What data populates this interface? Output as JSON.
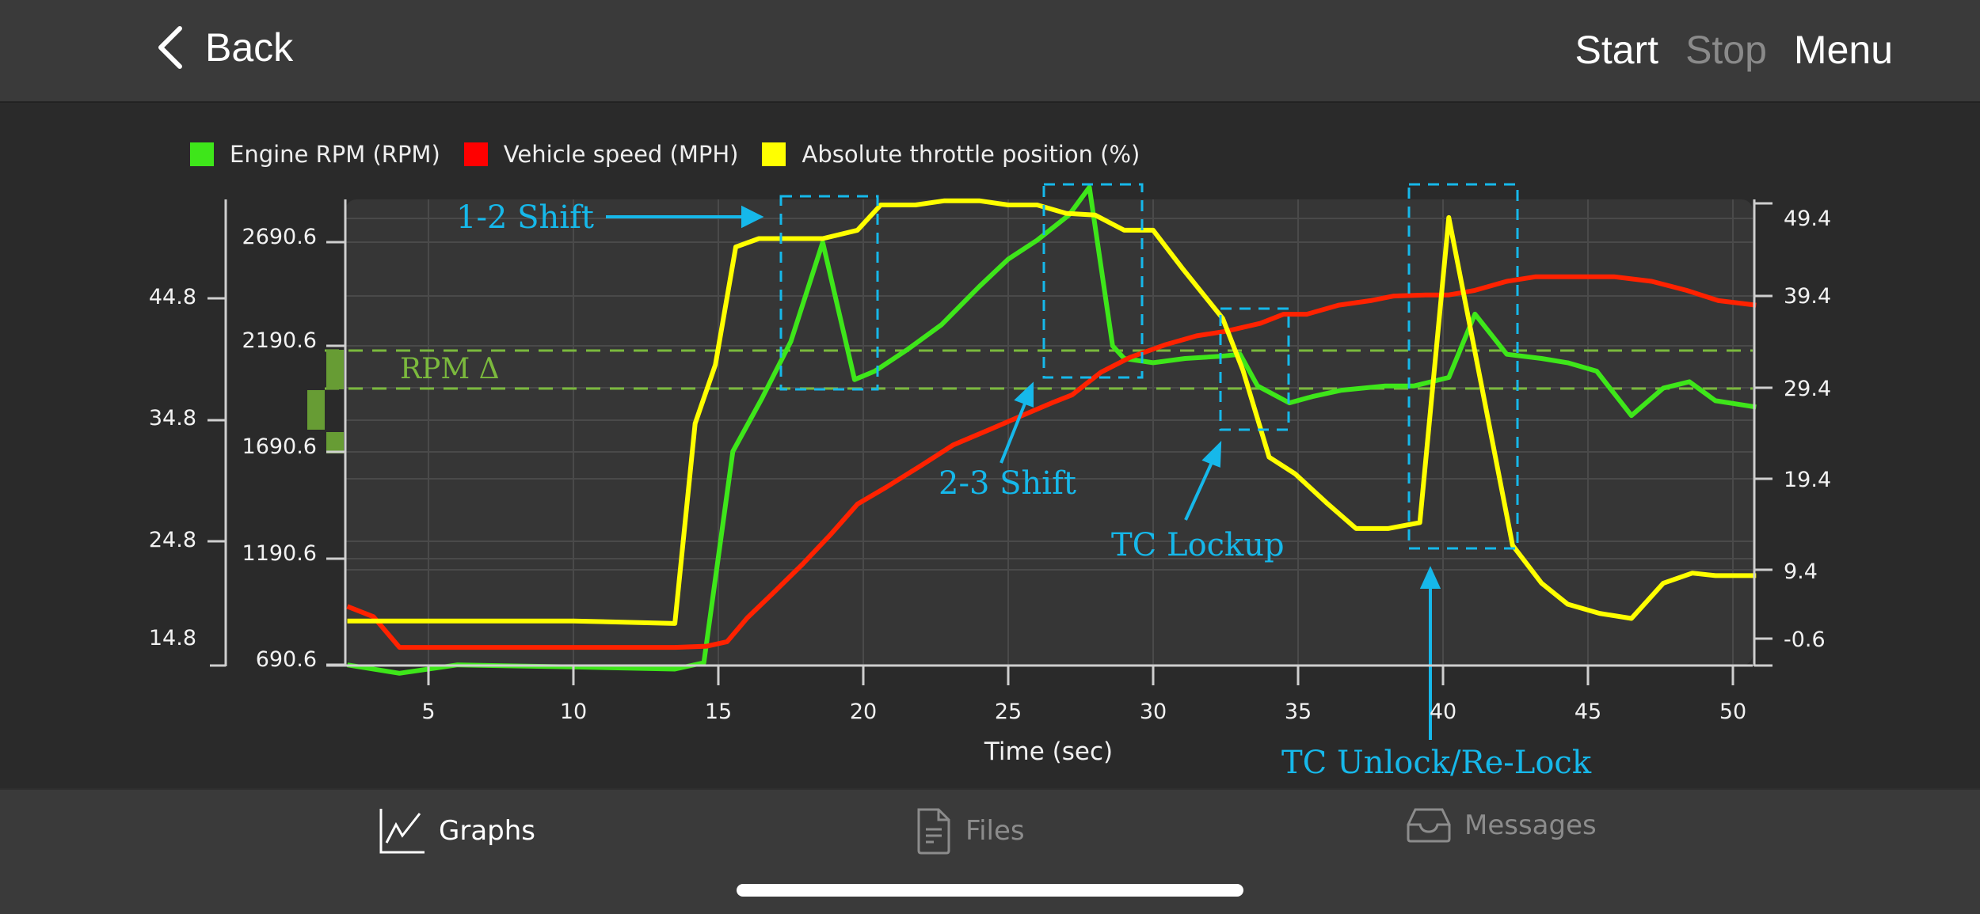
{
  "nav": {
    "back_label": "Back",
    "start_label": "Start",
    "stop_label": "Stop",
    "menu_label": "Menu"
  },
  "legend": [
    {
      "label": "Engine RPM (RPM)",
      "color": "#3ee61a"
    },
    {
      "label": "Vehicle speed (MPH)",
      "color": "#ff0000"
    },
    {
      "label": "Absolute throttle position (%)",
      "color": "#ffff00"
    }
  ],
  "annotations": {
    "shift12": "1-2 Shift",
    "shift23": "2-3 Shift",
    "tc_lockup": "TC Lockup",
    "tc_unlock": "TC Unlock/Re-Lock",
    "rpm_delta": "RPM Δ"
  },
  "tabs": [
    {
      "label": "Graphs",
      "icon": "line-chart-icon",
      "active": true
    },
    {
      "label": "Files",
      "icon": "document-icon",
      "active": false
    },
    {
      "label": "Messages",
      "icon": "inbox-tray-icon",
      "active": false
    }
  ],
  "chart_data": {
    "type": "line",
    "xlabel": "Time (sec)",
    "x_ticks": [
      5,
      10,
      15,
      20,
      25,
      30,
      35,
      40,
      45,
      50
    ],
    "xlim": [
      2.2,
      50.8
    ],
    "axes": {
      "speed_left_outer": {
        "ticks": [
          "44.8",
          "34.8",
          "24.8",
          "14.8"
        ]
      },
      "rpm_left_inner": {
        "ticks": [
          "2690.6",
          "2190.6",
          "1690.6",
          "1190.6",
          "690.6"
        ]
      },
      "throttle_right": {
        "ticks": [
          "49.4",
          "39.4",
          "29.4",
          "19.4",
          "9.4",
          "-0.6"
        ]
      }
    },
    "grid": true,
    "legend_position": "top",
    "series": [
      {
        "name": "Engine RPM (RPM)",
        "color": "#3ee61a",
        "axis": "rpm",
        "points": [
          [
            2.2,
            690
          ],
          [
            4,
            650
          ],
          [
            6,
            690
          ],
          [
            10,
            680
          ],
          [
            13.5,
            670
          ],
          [
            14.5,
            700
          ],
          [
            15.5,
            1700
          ],
          [
            16.5,
            1950
          ],
          [
            17.5,
            2220
          ],
          [
            18.6,
            2690
          ],
          [
            19.7,
            2040
          ],
          [
            20.4,
            2080
          ],
          [
            21.5,
            2180
          ],
          [
            22.7,
            2300
          ],
          [
            24,
            2480
          ],
          [
            25,
            2610
          ],
          [
            26,
            2700
          ],
          [
            27.1,
            2820
          ],
          [
            27.8,
            2950
          ],
          [
            28.6,
            2200
          ],
          [
            29,
            2140
          ],
          [
            30,
            2120
          ],
          [
            31.1,
            2140
          ],
          [
            32.3,
            2150
          ],
          [
            33,
            2160
          ],
          [
            33.6,
            2010
          ],
          [
            34.7,
            1930
          ],
          [
            35.5,
            1960
          ],
          [
            36.5,
            1990
          ],
          [
            38,
            2010
          ],
          [
            39,
            2010
          ],
          [
            40.2,
            2050
          ],
          [
            41.1,
            2350
          ],
          [
            42.2,
            2160
          ],
          [
            43.4,
            2140
          ],
          [
            44.3,
            2120
          ],
          [
            45.3,
            2080
          ],
          [
            46.5,
            1870
          ],
          [
            47.6,
            2000
          ],
          [
            48.5,
            2030
          ],
          [
            49.4,
            1940
          ],
          [
            50.8,
            1910
          ]
        ]
      },
      {
        "name": "Vehicle speed (MPH)",
        "color": "#ff2200",
        "axis": "speed",
        "points": [
          [
            2.2,
            17.7
          ],
          [
            3.1,
            16.8
          ],
          [
            4,
            14.1
          ],
          [
            6,
            14.1
          ],
          [
            10,
            14.1
          ],
          [
            13.5,
            14.1
          ],
          [
            14.6,
            14.2
          ],
          [
            15.3,
            14.6
          ],
          [
            16,
            16.7
          ],
          [
            16.9,
            18.9
          ],
          [
            17.9,
            21.4
          ],
          [
            18.9,
            24.1
          ],
          [
            19.8,
            26.7
          ],
          [
            20.8,
            28.2
          ],
          [
            22,
            30.1
          ],
          [
            23.1,
            31.9
          ],
          [
            24.4,
            33.3
          ],
          [
            25.4,
            34.4
          ],
          [
            26.5,
            35.6
          ],
          [
            27.2,
            36.3
          ],
          [
            28.2,
            38.3
          ],
          [
            29.2,
            39.6
          ],
          [
            30.4,
            40.7
          ],
          [
            31.5,
            41.5
          ],
          [
            32.5,
            41.9
          ],
          [
            33.7,
            42.6
          ],
          [
            34.5,
            43.4
          ],
          [
            35.3,
            43.4
          ],
          [
            36.4,
            44.2
          ],
          [
            37.5,
            44.6
          ],
          [
            38.3,
            45.0
          ],
          [
            39.4,
            45.1
          ],
          [
            40.2,
            45.1
          ],
          [
            41.1,
            45.5
          ],
          [
            42.2,
            46.3
          ],
          [
            43.2,
            46.7
          ],
          [
            44.5,
            46.7
          ],
          [
            45.9,
            46.7
          ],
          [
            47.2,
            46.3
          ],
          [
            48.4,
            45.5
          ],
          [
            49.5,
            44.6
          ],
          [
            50.8,
            44.2
          ]
        ]
      },
      {
        "name": "Absolute throttle position (%)",
        "color": "#ffff00",
        "axis": "throttle",
        "points": [
          [
            2.2,
            1.5
          ],
          [
            6,
            1.5
          ],
          [
            10,
            1.5
          ],
          [
            13.5,
            1.2
          ],
          [
            14.2,
            25
          ],
          [
            14.9,
            32
          ],
          [
            15.6,
            46
          ],
          [
            16.4,
            47
          ],
          [
            18.6,
            47
          ],
          [
            19.8,
            48
          ],
          [
            20.6,
            51
          ],
          [
            21.8,
            51
          ],
          [
            22.8,
            51.5
          ],
          [
            24,
            51.5
          ],
          [
            25,
            51
          ],
          [
            26,
            51
          ],
          [
            27,
            50
          ],
          [
            28,
            49.8
          ],
          [
            29,
            48
          ],
          [
            30,
            48
          ],
          [
            31,
            43.5
          ],
          [
            32.4,
            37.5
          ],
          [
            33.1,
            31.3
          ],
          [
            34,
            21
          ],
          [
            34.9,
            19
          ],
          [
            36,
            15.5
          ],
          [
            37,
            12.5
          ],
          [
            38.1,
            12.5
          ],
          [
            39.2,
            13.2
          ],
          [
            40.2,
            49.5
          ],
          [
            41.3,
            30
          ],
          [
            42.4,
            10.5
          ],
          [
            43.4,
            6
          ],
          [
            44.3,
            3.5
          ],
          [
            45.4,
            2.4
          ],
          [
            46.5,
            1.8
          ],
          [
            47.6,
            6
          ],
          [
            48.6,
            7.2
          ],
          [
            49.4,
            6.9
          ],
          [
            50.8,
            6.9
          ]
        ]
      }
    ]
  }
}
